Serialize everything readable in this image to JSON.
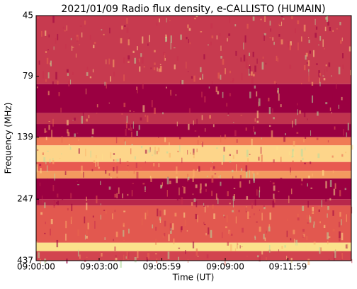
{
  "chart_data": {
    "type": "spectrogram",
    "title": "2021/01/09  Radio flux density, e-CALLISTO (HUMAIN)",
    "x_label": "Time (UT)",
    "y_label": "Frequency (MHz)",
    "xlim": [
      32400,
      33300
    ],
    "xticks": [
      {
        "value": 32400,
        "label": "09:00:00"
      },
      {
        "value": 32580,
        "label": "09:03:00"
      },
      {
        "value": 32759,
        "label": "09:05:59"
      },
      {
        "value": 32940,
        "label": "09:09:00"
      },
      {
        "value": 33119,
        "label": "09:11:59"
      }
    ],
    "ylim": [
      45,
      437
    ],
    "yticks": [
      45,
      79,
      139,
      247,
      437
    ],
    "y_scale": "log",
    "y_inverted": true,
    "bands": [
      {
        "from": 45,
        "to": 85,
        "color": "#c73a4f"
      },
      {
        "from": 85,
        "to": 111,
        "color": "#9a0041"
      },
      {
        "from": 111,
        "to": 123,
        "color": "#c0334e"
      },
      {
        "from": 123,
        "to": 139,
        "color": "#9a0041"
      },
      {
        "from": 139,
        "to": 150,
        "color": "#f07a55"
      },
      {
        "from": 150,
        "to": 175,
        "color": "#fdd58a"
      },
      {
        "from": 175,
        "to": 190,
        "color": "#e85a50"
      },
      {
        "from": 190,
        "to": 204,
        "color": "#f39a5f"
      },
      {
        "from": 204,
        "to": 247,
        "color": "#9a0041"
      },
      {
        "from": 247,
        "to": 262,
        "color": "#b8274b"
      },
      {
        "from": 262,
        "to": 370,
        "color": "#e2584f"
      },
      {
        "from": 370,
        "to": 400,
        "color": "#fbe28c"
      },
      {
        "from": 400,
        "to": 437,
        "color": "#d2444f"
      }
    ]
  }
}
